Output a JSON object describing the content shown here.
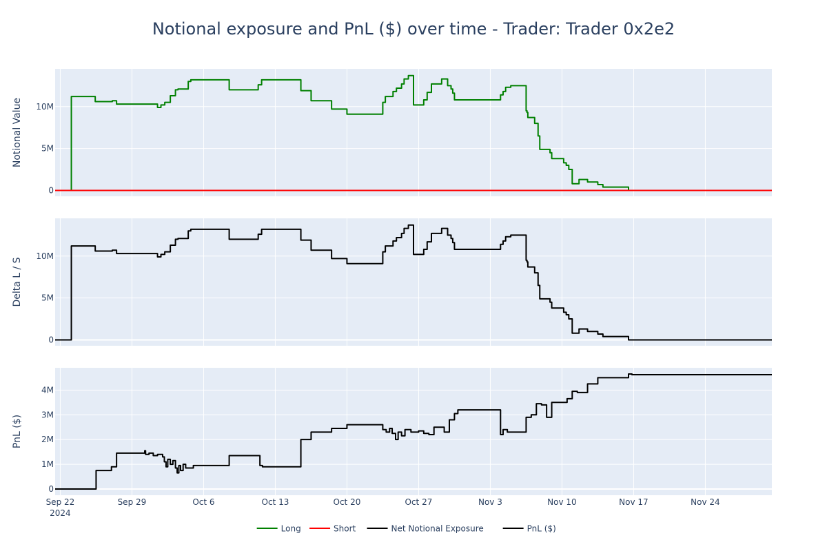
{
  "chart_data": {
    "type": "line",
    "title": "Notional exposure and PnL ($) over time - Trader: Trader 0x2e2",
    "x_ticks": [
      {
        "date": "2024-09-22",
        "label": "Sep 22",
        "sublabel": "2024"
      },
      {
        "date": "2024-09-29",
        "label": "Sep 29",
        "sublabel": ""
      },
      {
        "date": "2024-10-06",
        "label": "Oct 6",
        "sublabel": ""
      },
      {
        "date": "2024-10-13",
        "label": "Oct 13",
        "sublabel": ""
      },
      {
        "date": "2024-10-20",
        "label": "Oct 20",
        "sublabel": ""
      },
      {
        "date": "2024-10-27",
        "label": "Oct 27",
        "sublabel": ""
      },
      {
        "date": "2024-11-03",
        "label": "Nov 3",
        "sublabel": ""
      },
      {
        "date": "2024-11-10",
        "label": "Nov 10",
        "sublabel": ""
      },
      {
        "date": "2024-11-17",
        "label": "Nov 17",
        "sublabel": ""
      },
      {
        "date": "2024-11-24",
        "label": "Nov 24",
        "sublabel": ""
      }
    ],
    "x_range": [
      "2024-09-21 12:00",
      "2024-11-30 12:00"
    ],
    "grid": true,
    "legend_position": "bottom-center",
    "legend": [
      {
        "label": "Long",
        "color": "#008000"
      },
      {
        "label": "Short",
        "color": "#ff0000"
      },
      {
        "label": "Net Notional Exposure",
        "color": "#000000"
      },
      {
        "label": "PnL ($)",
        "color": "#000000"
      }
    ],
    "panels": [
      {
        "ylabel": "Notional Value",
        "ylim": [
          -700000,
          14500000
        ],
        "y_ticks": [
          {
            "value": 0,
            "label": "0"
          },
          {
            "value": 5000000,
            "label": "5M"
          },
          {
            "value": 10000000,
            "label": "10M"
          }
        ],
        "series": [
          {
            "name": "Long",
            "color": "#008000",
            "shape": "hv",
            "points": [
              [
                "2024-09-21 12:00",
                0
              ],
              [
                "2024-09-23 00:00",
                0
              ],
              [
                "2024-09-23 02:00",
                11200000
              ],
              [
                "2024-09-25 10:00",
                10600000
              ],
              [
                "2024-09-27 02:00",
                10700000
              ],
              [
                "2024-09-27 12:00",
                10300000
              ],
              [
                "2024-10-01 12:00",
                9900000
              ],
              [
                "2024-10-01 20:00",
                10200000
              ],
              [
                "2024-10-02 05:00",
                10500000
              ],
              [
                "2024-10-02 18:00",
                11300000
              ],
              [
                "2024-10-03 06:00",
                12000000
              ],
              [
                "2024-10-03 12:00",
                12100000
              ],
              [
                "2024-10-04 12:00",
                13000000
              ],
              [
                "2024-10-04 18:00",
                13200000
              ],
              [
                "2024-10-08 12:00",
                12000000
              ],
              [
                "2024-10-11 08:00",
                12600000
              ],
              [
                "2024-10-11 16:00",
                13200000
              ],
              [
                "2024-10-15 12:00",
                11900000
              ],
              [
                "2024-10-16 12:00",
                10700000
              ],
              [
                "2024-10-18 12:00",
                9700000
              ],
              [
                "2024-10-20 00:00",
                9100000
              ],
              [
                "2024-10-23 12:00",
                10500000
              ],
              [
                "2024-10-23 18:00",
                11200000
              ],
              [
                "2024-10-24 12:00",
                11800000
              ],
              [
                "2024-10-24 20:00",
                12200000
              ],
              [
                "2024-10-25 08:00",
                12700000
              ],
              [
                "2024-10-25 14:00",
                13300000
              ],
              [
                "2024-10-26 00:00",
                13700000
              ],
              [
                "2024-10-26 12:00",
                10200000
              ],
              [
                "2024-10-27 12:00",
                10800000
              ],
              [
                "2024-10-27 20:00",
                11700000
              ],
              [
                "2024-10-28 06:00",
                12700000
              ],
              [
                "2024-10-29 06:00",
                13300000
              ],
              [
                "2024-10-29 20:00",
                12500000
              ],
              [
                "2024-10-30 04:00",
                12100000
              ],
              [
                "2024-10-30 08:00",
                11600000
              ],
              [
                "2024-10-30 12:00",
                10800000
              ],
              [
                "2024-11-04 00:00",
                11400000
              ],
              [
                "2024-11-04 06:00",
                11800000
              ],
              [
                "2024-11-04 12:00",
                12300000
              ],
              [
                "2024-11-05 00:00",
                12500000
              ],
              [
                "2024-11-06 12:00",
                9500000
              ],
              [
                "2024-11-06 14:00",
                9300000
              ],
              [
                "2024-11-06 16:00",
                8700000
              ],
              [
                "2024-11-07 08:00",
                8000000
              ],
              [
                "2024-11-07 16:00",
                6500000
              ],
              [
                "2024-11-07 20:00",
                4900000
              ],
              [
                "2024-11-08 20:00",
                4500000
              ],
              [
                "2024-11-09 00:00",
                3800000
              ],
              [
                "2024-11-10 04:00",
                3300000
              ],
              [
                "2024-11-10 10:00",
                3000000
              ],
              [
                "2024-11-10 16:00",
                2500000
              ],
              [
                "2024-11-11 00:00",
                800000
              ],
              [
                "2024-11-11 16:00",
                1300000
              ],
              [
                "2024-11-12 12:00",
                1000000
              ],
              [
                "2024-11-13 12:00",
                700000
              ],
              [
                "2024-11-14 00:00",
                400000
              ],
              [
                "2024-11-16 12:00",
                0
              ],
              [
                "2024-11-30 12:00",
                0
              ]
            ]
          },
          {
            "name": "Short",
            "color": "#ff0000",
            "shape": "hv",
            "points": [
              [
                "2024-09-21 12:00",
                0
              ],
              [
                "2024-11-30 12:00",
                0
              ]
            ]
          }
        ]
      },
      {
        "ylabel": "Delta L / S",
        "ylim": [
          -700000,
          14500000
        ],
        "y_ticks": [
          {
            "value": 0,
            "label": "0"
          },
          {
            "value": 5000000,
            "label": "5M"
          },
          {
            "value": 10000000,
            "label": "10M"
          }
        ],
        "series": [
          {
            "name": "Net Notional Exposure",
            "color": "#000000",
            "shape": "hv",
            "same_as": "Long"
          }
        ]
      },
      {
        "ylabel": "PnL ($)",
        "ylim": [
          -250000,
          4900000
        ],
        "y_ticks": [
          {
            "value": 0,
            "label": "0"
          },
          {
            "value": 1000000,
            "label": "1M"
          },
          {
            "value": 2000000,
            "label": "2M"
          },
          {
            "value": 3000000,
            "label": "3M"
          },
          {
            "value": 4000000,
            "label": "4M"
          }
        ],
        "series": [
          {
            "name": "PnL ($)",
            "color": "#000000",
            "shape": "hv",
            "points": [
              [
                "2024-09-21 12:00",
                0
              ],
              [
                "2024-09-25 12:00",
                750000
              ],
              [
                "2024-09-27 00:00",
                900000
              ],
              [
                "2024-09-27 12:00",
                1450000
              ],
              [
                "2024-09-30 06:00",
                1550000
              ],
              [
                "2024-09-30 08:00",
                1400000
              ],
              [
                "2024-09-30 16:00",
                1450000
              ],
              [
                "2024-10-01 02:00",
                1350000
              ],
              [
                "2024-10-01 12:00",
                1400000
              ],
              [
                "2024-10-02 00:00",
                1300000
              ],
              [
                "2024-10-02 04:00",
                1100000
              ],
              [
                "2024-10-02 08:00",
                900000
              ],
              [
                "2024-10-02 12:00",
                1200000
              ],
              [
                "2024-10-02 18:00",
                1000000
              ],
              [
                "2024-10-03 00:00",
                1150000
              ],
              [
                "2024-10-03 06:00",
                850000
              ],
              [
                "2024-10-03 10:00",
                650000
              ],
              [
                "2024-10-03 14:00",
                950000
              ],
              [
                "2024-10-03 18:00",
                750000
              ],
              [
                "2024-10-04 00:00",
                1000000
              ],
              [
                "2024-10-04 06:00",
                850000
              ],
              [
                "2024-10-05 00:00",
                950000
              ],
              [
                "2024-10-08 12:00",
                1350000
              ],
              [
                "2024-10-11 12:00",
                950000
              ],
              [
                "2024-10-11 18:00",
                900000
              ],
              [
                "2024-10-15 12:00",
                2000000
              ],
              [
                "2024-10-16 12:00",
                2300000
              ],
              [
                "2024-10-18 12:00",
                2450000
              ],
              [
                "2024-10-20 00:00",
                2600000
              ],
              [
                "2024-10-23 12:00",
                2400000
              ],
              [
                "2024-10-23 20:00",
                2300000
              ],
              [
                "2024-10-24 04:00",
                2450000
              ],
              [
                "2024-10-24 10:00",
                2250000
              ],
              [
                "2024-10-24 18:00",
                2000000
              ],
              [
                "2024-10-25 00:00",
                2300000
              ],
              [
                "2024-10-25 08:00",
                2150000
              ],
              [
                "2024-10-25 16:00",
                2400000
              ],
              [
                "2024-10-26 06:00",
                2300000
              ],
              [
                "2024-10-27 00:00",
                2350000
              ],
              [
                "2024-10-27 12:00",
                2250000
              ],
              [
                "2024-10-28 00:00",
                2200000
              ],
              [
                "2024-10-28 12:00",
                2500000
              ],
              [
                "2024-10-29 12:00",
                2300000
              ],
              [
                "2024-10-30 00:00",
                2800000
              ],
              [
                "2024-10-30 12:00",
                3050000
              ],
              [
                "2024-10-30 20:00",
                3200000
              ],
              [
                "2024-11-04 00:00",
                2200000
              ],
              [
                "2024-11-04 06:00",
                2400000
              ],
              [
                "2024-11-04 16:00",
                2300000
              ],
              [
                "2024-11-06 12:00",
                2900000
              ],
              [
                "2024-11-07 00:00",
                3000000
              ],
              [
                "2024-11-07 12:00",
                3450000
              ],
              [
                "2024-11-08 00:00",
                3400000
              ],
              [
                "2024-11-08 12:00",
                2900000
              ],
              [
                "2024-11-09 00:00",
                3500000
              ],
              [
                "2024-11-10 12:00",
                3650000
              ],
              [
                "2024-11-11 00:00",
                3950000
              ],
              [
                "2024-11-11 12:00",
                3900000
              ],
              [
                "2024-11-12 12:00",
                4250000
              ],
              [
                "2024-11-13 12:00",
                4500000
              ],
              [
                "2024-11-16 12:00",
                4650000
              ],
              [
                "2024-11-16 20:00",
                4620000
              ],
              [
                "2024-11-30 12:00",
                4620000
              ]
            ]
          }
        ]
      }
    ]
  }
}
